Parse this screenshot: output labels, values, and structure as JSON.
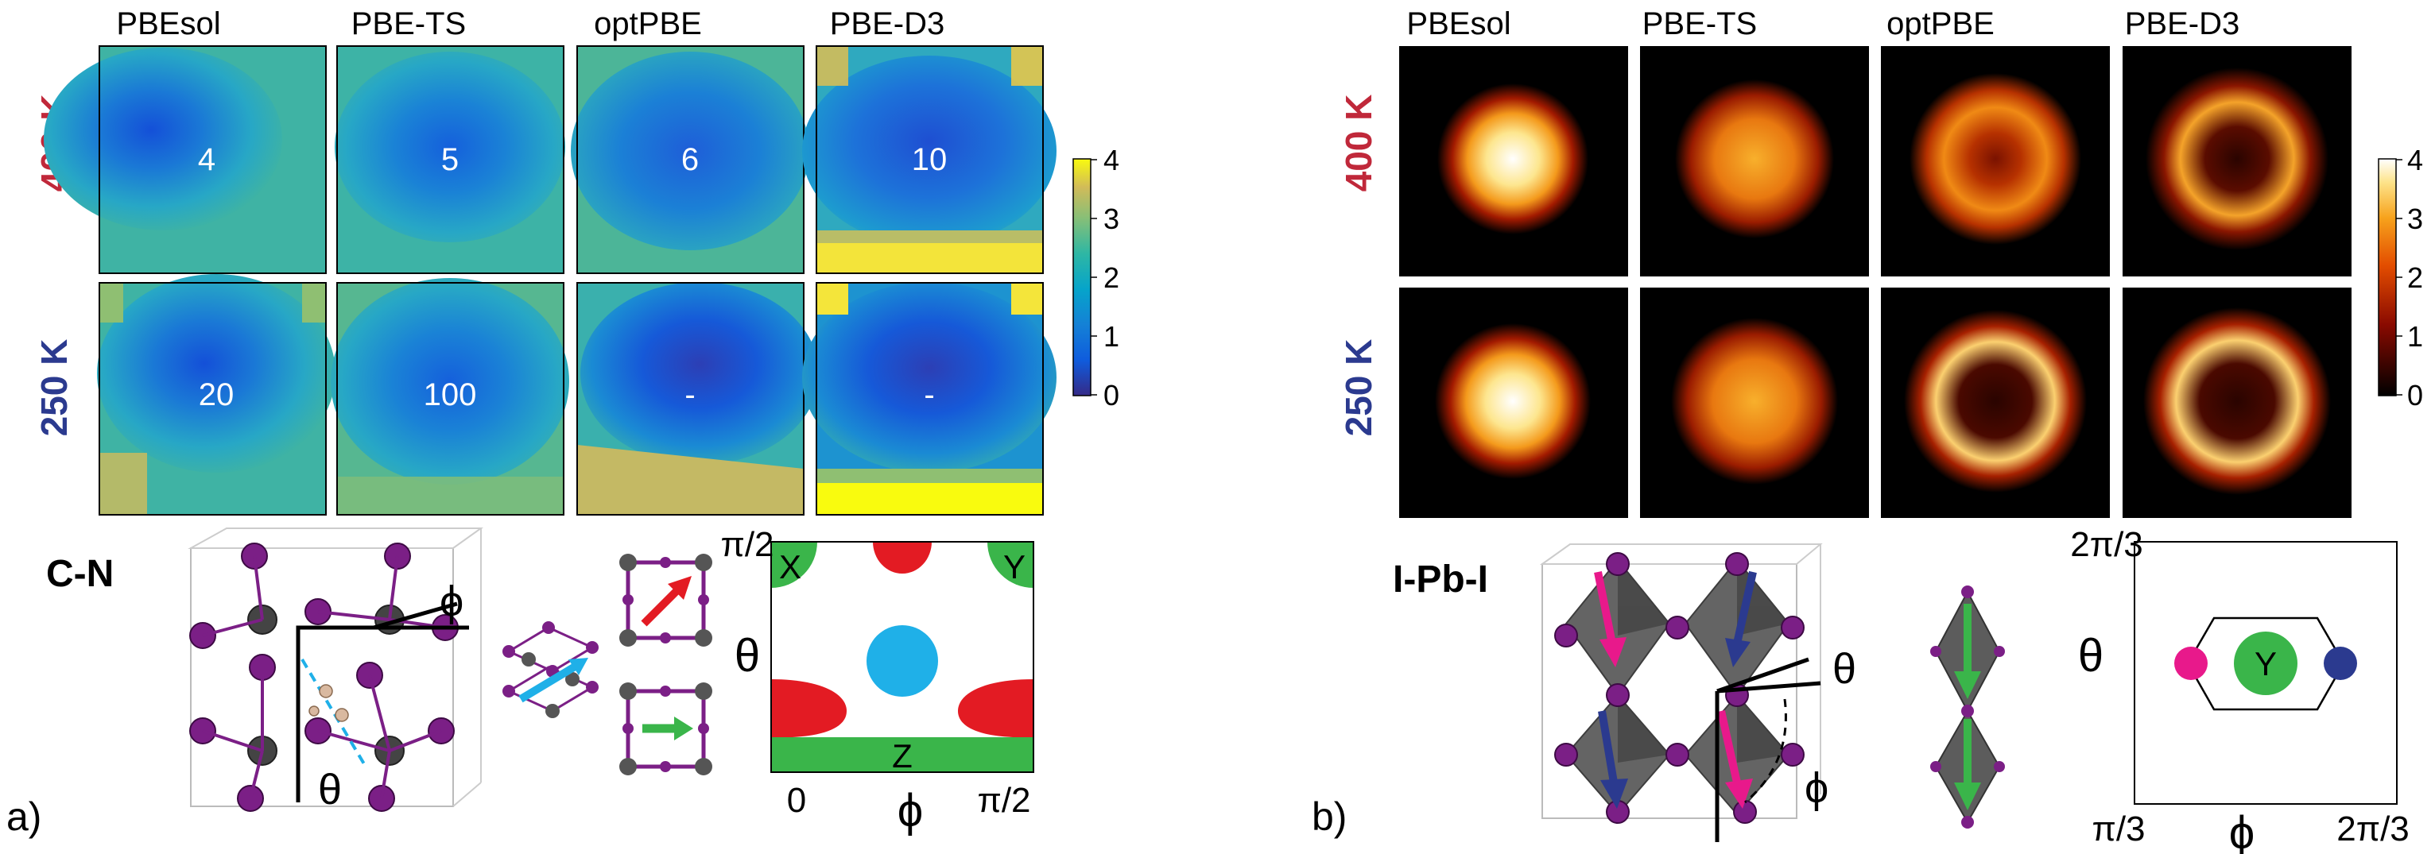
{
  "panel_a": {
    "panel_label": "a)",
    "columns": [
      "PBEsol",
      "PBE-TS",
      "optPBE",
      "PBE-D3"
    ],
    "rows": [
      {
        "label": "400 K",
        "color": "#c0283a",
        "values": [
          "4",
          "5",
          "6",
          "10"
        ]
      },
      {
        "label": "250 K",
        "color": "#2b3a8f",
        "values": [
          "20",
          "100",
          "-",
          "-"
        ]
      }
    ],
    "colorbar": {
      "ticks": [
        "4",
        "3",
        "2",
        "1",
        "0"
      ],
      "colormap": "parula"
    },
    "molecule_label": "C-N",
    "angle_labels": {
      "phi": "ϕ",
      "theta": "θ"
    },
    "map": {
      "y_top": "π/2",
      "x_left": "0",
      "x_right": "π/2",
      "x_symbol": "ϕ",
      "y_symbol": "θ",
      "regions": [
        "X",
        "Y",
        "Z"
      ],
      "region_colors": {
        "X": "#3ab54a",
        "Y": "#3ab54a",
        "Z": "#3ab54a",
        "red": "#e31b23",
        "blue": "#1fb0e8"
      }
    },
    "arrow_colors": [
      "#1fb0e8",
      "#e31b23",
      "#3ab54a"
    ]
  },
  "panel_b": {
    "panel_label": "b)",
    "columns": [
      "PBEsol",
      "PBE-TS",
      "optPBE",
      "PBE-D3"
    ],
    "rows": [
      {
        "label": "400 K",
        "color": "#c0283a"
      },
      {
        "label": "250 K",
        "color": "#2b3a8f"
      }
    ],
    "colorbar": {
      "ticks": [
        "4",
        "3",
        "2",
        "1",
        "0"
      ],
      "colormap": "hot"
    },
    "molecule_label": "I-Pb-I",
    "angle_labels": {
      "phi": "ϕ",
      "theta": "θ"
    },
    "map": {
      "y_top": "2π/3",
      "x_left": "π/3",
      "x_right": "2π/3",
      "x_symbol": "ϕ",
      "y_symbol": "θ",
      "regions": [
        "Y"
      ],
      "dot_colors": [
        "#e8198b",
        "#3ab54a",
        "#2b3a8f"
      ]
    },
    "arrow_colors": [
      "#e8198b",
      "#2b3a8f",
      "#3ab54a"
    ]
  }
}
